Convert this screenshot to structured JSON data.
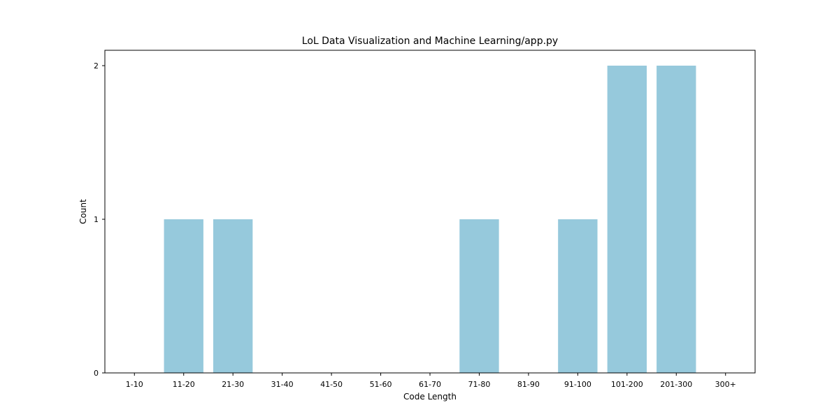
{
  "chart_data": {
    "type": "bar",
    "title": "LoL Data Visualization and Machine Learning/app.py",
    "xlabel": "Code Length",
    "ylabel": "Count",
    "categories": [
      "1-10",
      "11-20",
      "21-30",
      "31-40",
      "41-50",
      "51-60",
      "61-70",
      "71-80",
      "81-90",
      "91-100",
      "101-200",
      "201-300",
      "300+"
    ],
    "values": [
      0,
      1,
      1,
      0,
      0,
      0,
      0,
      1,
      0,
      1,
      2,
      2,
      0
    ],
    "ylim": [
      0,
      2.1
    ],
    "yticks": [
      0,
      1,
      2
    ],
    "grid": false,
    "legend": "none",
    "bar_color": "#96c9dc"
  }
}
